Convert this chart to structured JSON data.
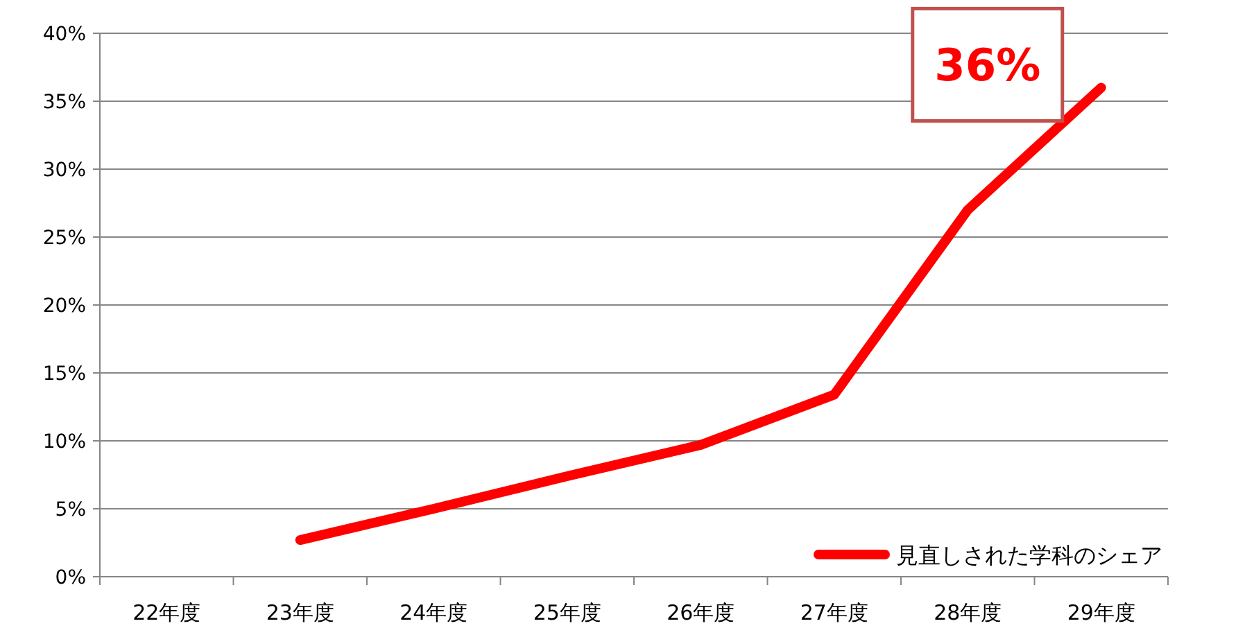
{
  "chart_data": {
    "type": "line",
    "categories": [
      "22年度",
      "23年度",
      "24年度",
      "25年度",
      "26年度",
      "27年度",
      "28年度",
      "29年度"
    ],
    "series": [
      {
        "name": "見直しされた学科のシェア",
        "color": "#ff0000",
        "values": [
          null,
          2.7,
          5,
          7.4,
          9.7,
          13.4,
          27,
          36
        ]
      }
    ],
    "ylim": [
      0,
      40
    ],
    "yticks": [
      {
        "value": 0,
        "label": "0%"
      },
      {
        "value": 5,
        "label": "5%"
      },
      {
        "value": 10,
        "label": "10%"
      },
      {
        "value": 15,
        "label": "15%"
      },
      {
        "value": 20,
        "label": "20%"
      },
      {
        "value": 25,
        "label": "25%"
      },
      {
        "value": 30,
        "label": "30%"
      },
      {
        "value": 35,
        "label": "35%"
      },
      {
        "value": 40,
        "label": "40%"
      }
    ],
    "grid": "y",
    "legend": "bottom right",
    "annotations": [
      {
        "text": "36%",
        "x": "29年度",
        "y": 36
      }
    ]
  }
}
